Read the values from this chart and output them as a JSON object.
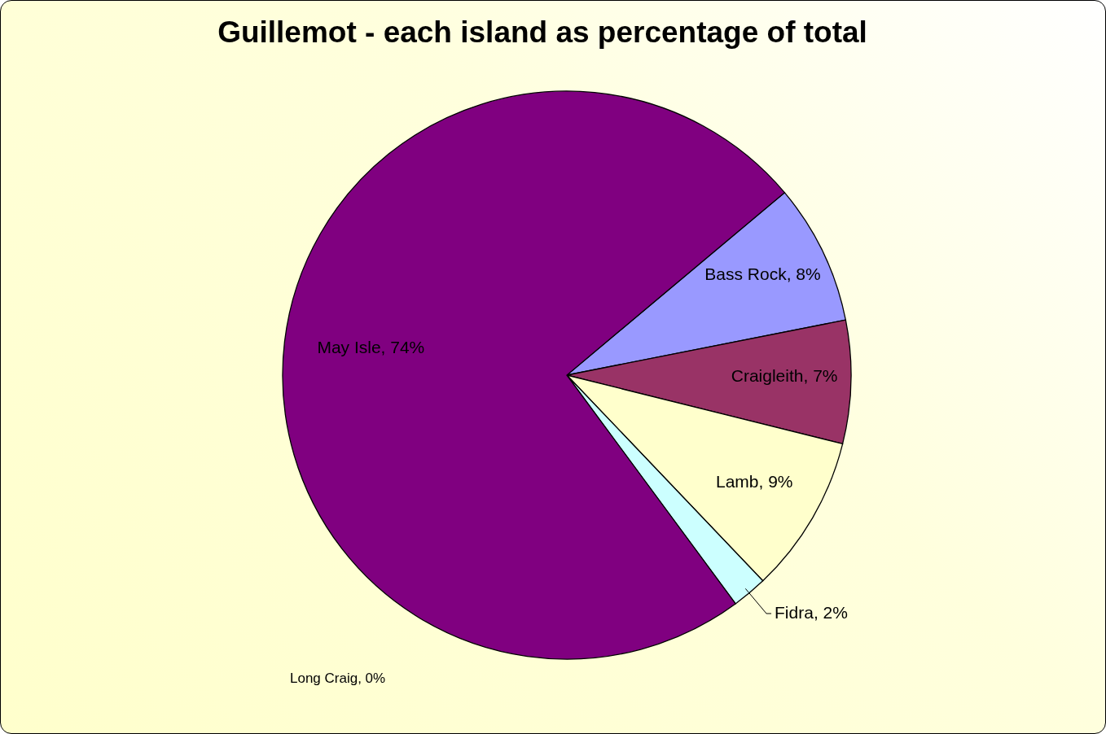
{
  "chart_data": {
    "type": "pie",
    "title": "Guillemot - each island as percentage of total",
    "categories": [
      "Bass Rock",
      "Craigleith",
      "Lamb",
      "Fidra",
      "Long Craig",
      "May Isle"
    ],
    "values": [
      8,
      7,
      9,
      2,
      0,
      74
    ],
    "value_labels": [
      ", 8%",
      ", 7%",
      ", 9%",
      ", 2%",
      ", 0%",
      ", 74%"
    ],
    "colors": [
      "#9999ff",
      "#993366",
      "#ffffcc",
      "#ccffff",
      "#ff8080",
      "#800080"
    ],
    "legend": false
  }
}
